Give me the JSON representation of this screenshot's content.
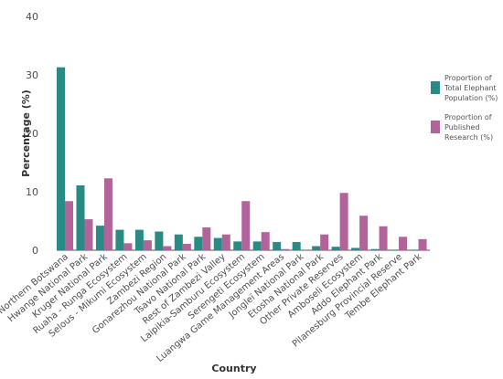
{
  "chart_data": {
    "type": "bar",
    "xlabel": "Country",
    "ylabel": "Percentage (%)",
    "ylim": [
      0,
      40
    ],
    "yticks": [
      0,
      10,
      20,
      30,
      40
    ],
    "grid": false,
    "legend_position": "right",
    "categories": [
      "Northern Botswana",
      "Hwange National Park",
      "Kruger National Park",
      "Ruaha - Runga Ecosystem",
      "Selous - Mikumi Ecosystem",
      "Zambezi Region",
      "Gonarezhou National Park",
      "Tsavo National Park",
      "Rest of Zambezi Valley",
      "Laipikia-Samburu Ecosystem",
      "Serengeti Ecosystem",
      "Luangwa Game Management Areas",
      "Jongleï National Park",
      "Etosha National Park",
      "Other Private Reserves",
      "Amboseli Ecosystem",
      "Addo Elephant Park",
      "Pilanesburg Provincial Reserve",
      "Tembe Elephant Park"
    ],
    "series": [
      {
        "name": "Proportion of Total Elephant Population (%)",
        "legend_lines": [
          "Proportion of",
          "Total Elephant",
          "Population (%)"
        ],
        "color": "#2a8a84",
        "values": [
          31.3,
          11.1,
          4.2,
          3.5,
          3.5,
          3.2,
          2.7,
          2.3,
          2.1,
          1.5,
          1.5,
          1.4,
          1.4,
          0.7,
          0.6,
          0.4,
          0.2,
          0.1,
          0.1
        ]
      },
      {
        "name": "Proportion of Published Research (%)",
        "legend_lines": [
          "Proportion of",
          "Published",
          "Research (%)"
        ],
        "color": "#b0649a",
        "values": [
          8.4,
          5.3,
          12.3,
          1.2,
          1.7,
          0.7,
          1.1,
          3.9,
          2.7,
          8.4,
          3.1,
          0.2,
          0.0,
          2.7,
          9.8,
          5.9,
          4.1,
          2.3,
          1.9
        ]
      }
    ]
  }
}
